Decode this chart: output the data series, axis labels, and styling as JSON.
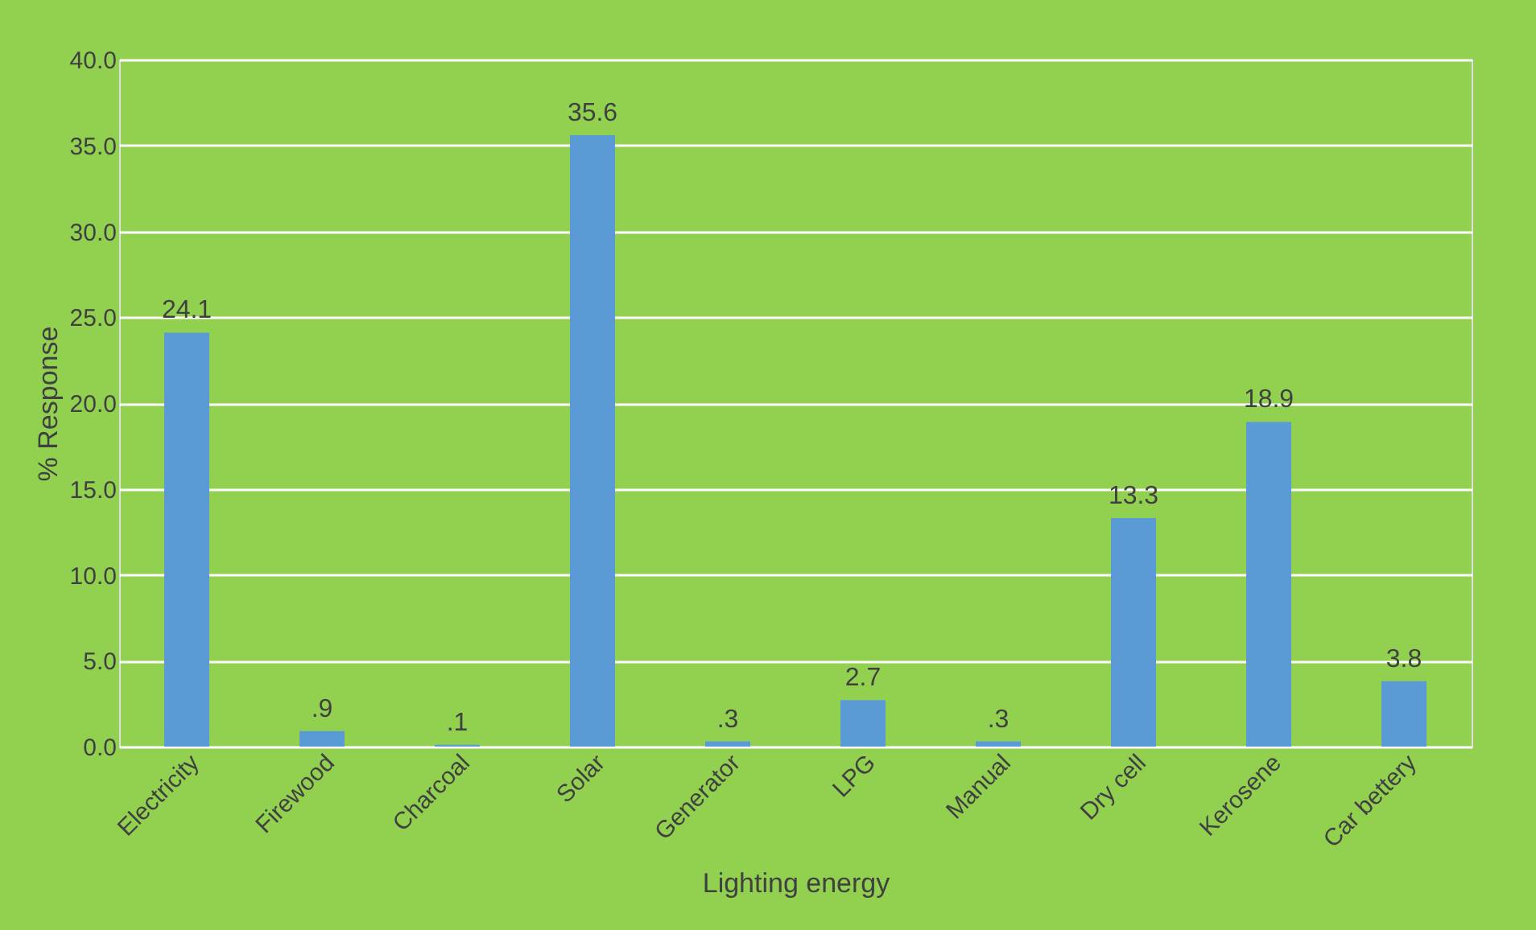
{
  "chart_data": {
    "type": "bar",
    "xlabel": "Lighting energy",
    "ylabel": "% Response",
    "categories": [
      "Electricity",
      "Firewood",
      "Charcoal",
      "Solar",
      "Generator",
      "LPG",
      "Manual",
      "Dry cell",
      "Kerosene",
      "Car bettery"
    ],
    "values": [
      24.1,
      0.9,
      0.1,
      35.6,
      0.3,
      2.7,
      0.3,
      13.3,
      18.9,
      3.8
    ],
    "value_labels": [
      "24.1",
      ".9",
      ".1",
      "35.6",
      ".3",
      "2.7",
      ".3",
      "13.3",
      "18.9",
      "3.8"
    ],
    "color": "#5b9bd5",
    "ylim": [
      0,
      40
    ],
    "yticks": [
      {
        "value": 0,
        "label": "0.0"
      },
      {
        "value": 5,
        "label": "5.0"
      },
      {
        "value": 10,
        "label": "10.0"
      },
      {
        "value": 15,
        "label": "15.0"
      },
      {
        "value": 20,
        "label": "20.0"
      },
      {
        "value": 25,
        "label": "25.0"
      },
      {
        "value": 30,
        "label": "30.0"
      },
      {
        "value": 35,
        "label": "35.0"
      },
      {
        "value": 40,
        "label": "40.0"
      }
    ],
    "grid": "y"
  }
}
